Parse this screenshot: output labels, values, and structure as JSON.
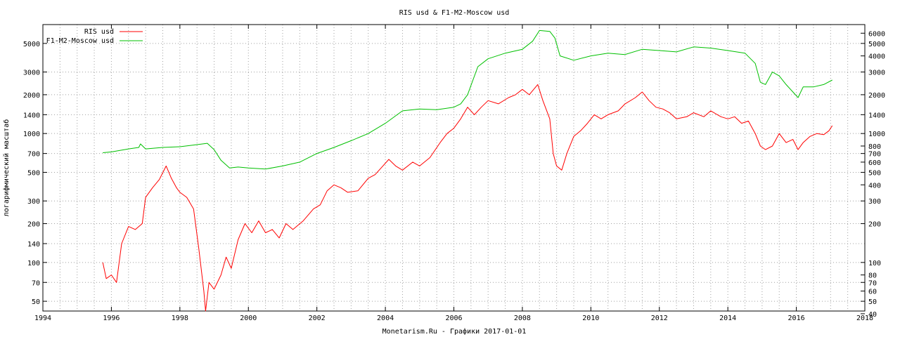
{
  "chart_data": {
    "type": "line",
    "title": "RIS usd & F1-M2-Moscow usd",
    "xlabel": "Monetarism.Ru - Графики 2017-01-01",
    "ylabel": "логарифмический масштаб",
    "y_scale": "log",
    "xlim": [
      1994,
      2018
    ],
    "ylim": [
      42,
      7000
    ],
    "grid": true,
    "legend_position": "top-left",
    "x_ticks": [
      "1994",
      "1996",
      "1998",
      "2000",
      "2002",
      "2004",
      "2006",
      "2008",
      "2010",
      "2012",
      "2014",
      "2016",
      "2018"
    ],
    "y_ticks_left": [
      "50",
      "70",
      "100",
      "140",
      "200",
      "300",
      "500",
      "700",
      "1000",
      "1400",
      "2000",
      "3000",
      "5000"
    ],
    "y_ticks_right": [
      "40",
      "50",
      "60",
      "70",
      "80",
      "100",
      "200",
      "300",
      "400",
      "500",
      "600",
      "700",
      "800",
      "1000",
      "1400",
      "2000",
      "3000",
      "4000",
      "5000",
      "6000"
    ],
    "series": [
      {
        "name": "RIS usd",
        "color": "#ff0000",
        "x": [
          1995.75,
          1995.85,
          1996.0,
          1996.15,
          1996.3,
          1996.5,
          1996.7,
          1996.9,
          1997.0,
          1997.2,
          1997.4,
          1997.6,
          1997.75,
          1997.9,
          1998.0,
          1998.2,
          1998.4,
          1998.55,
          1998.7,
          1998.75,
          1998.85,
          1999.0,
          1999.2,
          1999.35,
          1999.5,
          1999.7,
          1999.9,
          2000.1,
          2000.3,
          2000.5,
          2000.7,
          2000.9,
          2001.1,
          2001.3,
          2001.6,
          2001.9,
          2002.1,
          2002.3,
          2002.5,
          2002.7,
          2002.9,
          2003.2,
          2003.5,
          2003.7,
          2003.9,
          2004.1,
          2004.3,
          2004.5,
          2004.8,
          2005.0,
          2005.3,
          2005.6,
          2005.8,
          2006.0,
          2006.2,
          2006.4,
          2006.6,
          2006.8,
          2007.0,
          2007.3,
          2007.6,
          2007.8,
          2008.0,
          2008.2,
          2008.45,
          2008.6,
          2008.8,
          2008.9,
          2009.0,
          2009.15,
          2009.3,
          2009.5,
          2009.7,
          2009.9,
          2010.1,
          2010.3,
          2010.5,
          2010.8,
          2011.0,
          2011.3,
          2011.5,
          2011.7,
          2011.9,
          2012.1,
          2012.3,
          2012.5,
          2012.8,
          2013.0,
          2013.3,
          2013.5,
          2013.8,
          2014.0,
          2014.2,
          2014.4,
          2014.6,
          2014.8,
          2014.95,
          2015.1,
          2015.3,
          2015.5,
          2015.7,
          2015.9,
          2016.05,
          2016.2,
          2016.4,
          2016.6,
          2016.8,
          2016.95,
          2017.05
        ],
        "y": [
          100,
          75,
          80,
          70,
          140,
          190,
          180,
          200,
          320,
          380,
          440,
          560,
          450,
          380,
          350,
          320,
          260,
          130,
          60,
          42,
          70,
          62,
          80,
          110,
          90,
          150,
          200,
          170,
          210,
          170,
          180,
          155,
          200,
          180,
          210,
          260,
          280,
          360,
          400,
          380,
          350,
          360,
          450,
          480,
          550,
          630,
          560,
          520,
          600,
          560,
          650,
          850,
          1000,
          1100,
          1300,
          1600,
          1400,
          1600,
          1800,
          1700,
          1900,
          2000,
          2200,
          2000,
          2400,
          1800,
          1300,
          700,
          560,
          520,
          700,
          950,
          1050,
          1200,
          1400,
          1300,
          1400,
          1500,
          1700,
          1900,
          2100,
          1800,
          1600,
          1550,
          1450,
          1300,
          1350,
          1450,
          1350,
          1500,
          1350,
          1300,
          1350,
          1200,
          1250,
          1000,
          800,
          750,
          800,
          1000,
          850,
          900,
          750,
          850,
          950,
          1000,
          980,
          1050,
          1150
        ]
      },
      {
        "name": "F1-M2-Moscow usd",
        "color": "#00c000",
        "x": [
          1995.75,
          1996.0,
          1996.5,
          1996.8,
          1996.85,
          1997.0,
          1997.5,
          1998.0,
          1998.5,
          1998.8,
          1999.0,
          1999.2,
          1999.45,
          1999.7,
          2000.0,
          2000.5,
          2001.0,
          2001.5,
          2002.0,
          2002.5,
          2003.0,
          2003.5,
          2004.0,
          2004.5,
          2005.0,
          2005.5,
          2006.0,
          2006.2,
          2006.4,
          2006.7,
          2007.0,
          2007.5,
          2008.0,
          2008.3,
          2008.5,
          2008.8,
          2008.95,
          2009.1,
          2009.5,
          2010.0,
          2010.5,
          2011.0,
          2011.5,
          2012.0,
          2012.5,
          2013.0,
          2013.5,
          2014.0,
          2014.5,
          2014.8,
          2014.95,
          2015.1,
          2015.3,
          2015.5,
          2015.7,
          2015.9,
          2016.05,
          2016.2,
          2016.5,
          2016.8,
          2017.05
        ],
        "y": [
          710,
          720,
          760,
          780,
          830,
          760,
          780,
          790,
          820,
          840,
          750,
          620,
          540,
          550,
          540,
          530,
          560,
          600,
          700,
          780,
          880,
          1000,
          1200,
          1500,
          1550,
          1530,
          1600,
          1700,
          2000,
          3300,
          3800,
          4200,
          4500,
          5200,
          6300,
          6200,
          5500,
          4000,
          3700,
          4000,
          4200,
          4100,
          4500,
          4400,
          4300,
          4700,
          4600,
          4400,
          4200,
          3500,
          2500,
          2400,
          3000,
          2800,
          2400,
          2100,
          1900,
          2300,
          2300,
          2400,
          2600
        ]
      }
    ]
  }
}
